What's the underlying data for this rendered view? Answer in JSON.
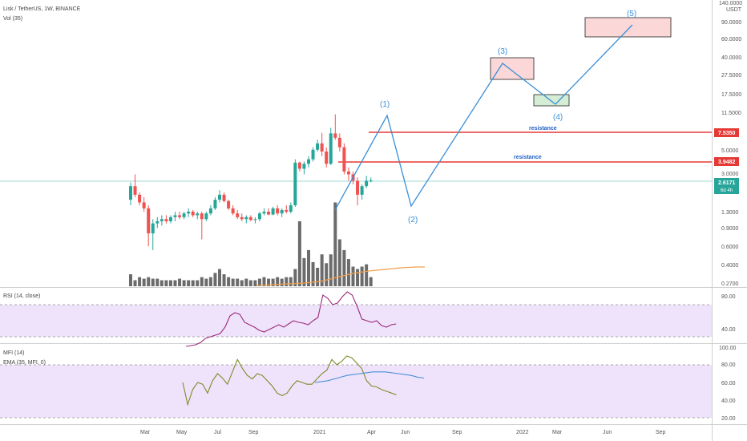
{
  "header": {
    "symbol": "Lisk / TetherUS, 1W, BINANCE",
    "volume": "Vol (35)",
    "rsi": "RSI (14, close)",
    "mfi": "MFI (14)",
    "ema": "EMA (35, MFI, 0)"
  },
  "price_axis": {
    "unit": "USDT",
    "ticks": [
      "140.0000",
      "90.0000",
      "60.0000",
      "40.0000",
      "27.5000",
      "17.5000",
      "11.5000",
      "7.5350",
      "5.0000",
      "3.9482",
      "3.0000",
      "2.6171",
      "1.3000",
      "0.9000",
      "0.6000",
      "0.4000",
      "0.2700"
    ],
    "badges": [
      {
        "value": "7.5350",
        "color": "#e53935"
      },
      {
        "value": "3.9482",
        "color": "#e53935"
      },
      {
        "value": "2.6171",
        "sub": "6d 4h",
        "color": "#26a69a"
      }
    ]
  },
  "rsi_axis": {
    "ticks": [
      "80.00",
      "40.00"
    ]
  },
  "mfi_axis": {
    "ticks": [
      "100.00",
      "80.00",
      "60.00",
      "40.00",
      "20.00"
    ]
  },
  "date_axis": {
    "ticks": [
      "Mar",
      "May",
      "Jul",
      "Sep",
      "2021",
      "Apr",
      "Jun",
      "Sep",
      "2022",
      "Mar",
      "Jun",
      "Sep"
    ]
  },
  "annotations": {
    "waves": [
      "(1)",
      "(2)",
      "(3)",
      "(4)",
      "(5)"
    ],
    "resistance": [
      "resistance",
      "resistance"
    ],
    "wave_color": "#3a8fd8",
    "resistance_line_color": "#e53935"
  },
  "chart_data": {
    "type": "candlestick",
    "title": "Lisk / TetherUS, 1W, BINANCE",
    "y_scale": "log",
    "ylim": [
      0.27,
      140
    ],
    "colors": {
      "up": "#26a69a",
      "down": "#ef5350",
      "volume": "#6b6b6b"
    },
    "candles_approx": [
      [
        1.7,
        2.5,
        1.5,
        2.3
      ],
      [
        2.3,
        3.0,
        1.8,
        1.9
      ],
      [
        1.9,
        2.0,
        1.5,
        1.6
      ],
      [
        1.6,
        1.8,
        1.3,
        1.4
      ],
      [
        1.4,
        1.5,
        0.6,
        0.8
      ],
      [
        0.8,
        1.1,
        0.55,
        1.0
      ],
      [
        1.0,
        1.15,
        0.9,
        1.05
      ],
      [
        1.05,
        1.2,
        0.95,
        1.1
      ],
      [
        1.1,
        1.2,
        1.0,
        1.05
      ],
      [
        1.05,
        1.2,
        1.0,
        1.15
      ],
      [
        1.15,
        1.3,
        1.05,
        1.2
      ],
      [
        1.2,
        1.3,
        1.1,
        1.15
      ],
      [
        1.15,
        1.3,
        1.1,
        1.25
      ],
      [
        1.25,
        1.4,
        1.15,
        1.3
      ],
      [
        1.3,
        1.35,
        1.15,
        1.2
      ],
      [
        1.2,
        1.3,
        1.1,
        1.25
      ],
      [
        1.25,
        1.3,
        0.7,
        1.1
      ],
      [
        1.1,
        1.3,
        1.05,
        1.25
      ],
      [
        1.25,
        1.5,
        1.2,
        1.4
      ],
      [
        1.4,
        1.8,
        1.35,
        1.7
      ],
      [
        1.7,
        2.1,
        1.6,
        1.9
      ],
      [
        1.9,
        2.0,
        1.6,
        1.65
      ],
      [
        1.65,
        1.7,
        1.35,
        1.4
      ],
      [
        1.4,
        1.5,
        1.2,
        1.25
      ],
      [
        1.25,
        1.35,
        1.1,
        1.15
      ],
      [
        1.15,
        1.25,
        1.05,
        1.1
      ],
      [
        1.1,
        1.2,
        1.0,
        1.15
      ],
      [
        1.15,
        1.2,
        1.05,
        1.08
      ],
      [
        1.08,
        1.15,
        1.0,
        1.1
      ],
      [
        1.1,
        1.3,
        1.05,
        1.25
      ],
      [
        1.25,
        1.4,
        1.2,
        1.3
      ],
      [
        1.3,
        1.4,
        1.2,
        1.22
      ],
      [
        1.22,
        1.45,
        1.2,
        1.4
      ],
      [
        1.4,
        1.5,
        1.2,
        1.25
      ],
      [
        1.25,
        1.4,
        1.15,
        1.35
      ],
      [
        1.35,
        1.5,
        1.25,
        1.3
      ],
      [
        1.3,
        1.6,
        1.25,
        1.5
      ],
      [
        1.5,
        4.2,
        1.45,
        3.9
      ],
      [
        3.9,
        4.0,
        3.2,
        3.4
      ],
      [
        3.4,
        4.0,
        3.0,
        3.8
      ],
      [
        3.8,
        4.5,
        3.5,
        4.2
      ],
      [
        4.2,
        5.5,
        4.0,
        5.2
      ],
      [
        5.2,
        6.5,
        5.0,
        6.0
      ],
      [
        6.0,
        7.6,
        4.5,
        5.0
      ],
      [
        5.0,
        5.5,
        3.5,
        3.8
      ],
      [
        3.8,
        8.5,
        3.7,
        7.5
      ],
      [
        7.5,
        11.5,
        6.5,
        6.8
      ],
      [
        6.8,
        7.5,
        5.0,
        5.5
      ],
      [
        5.5,
        6.0,
        3.0,
        3.2
      ],
      [
        3.2,
        3.5,
        2.6,
        3.0
      ],
      [
        3.0,
        3.2,
        2.4,
        2.6
      ],
      [
        2.6,
        2.8,
        1.5,
        1.9
      ],
      [
        1.9,
        2.4,
        1.7,
        2.3
      ],
      [
        2.3,
        2.9,
        2.2,
        2.6
      ],
      [
        2.6,
        2.8,
        2.5,
        2.62
      ]
    ],
    "volume_approx": [
      0.32,
      0.28,
      0.3,
      0.29,
      0.3,
      0.29,
      0.29,
      0.28,
      0.28,
      0.28,
      0.28,
      0.29,
      0.28,
      0.28,
      0.28,
      0.28,
      0.3,
      0.29,
      0.3,
      0.33,
      0.36,
      0.32,
      0.3,
      0.29,
      0.29,
      0.28,
      0.29,
      0.28,
      0.28,
      0.29,
      0.3,
      0.29,
      0.29,
      0.3,
      0.29,
      0.3,
      0.3,
      0.36,
      1.05,
      0.46,
      0.55,
      0.42,
      0.37,
      0.5,
      0.41,
      0.5,
      1.6,
      0.7,
      0.55,
      0.45,
      0.38,
      0.36,
      0.38,
      0.4,
      0.3
    ],
    "rsi_approx": [
      28,
      29,
      30,
      33,
      38,
      40,
      42,
      44,
      52,
      66,
      70,
      68,
      58,
      55,
      52,
      48,
      46,
      49,
      52,
      55,
      52,
      56,
      60,
      58,
      57,
      55,
      60,
      64,
      92,
      88,
      80,
      82,
      90,
      96,
      92,
      78,
      62,
      60,
      58,
      60,
      54,
      52,
      55,
      56
    ],
    "mfi_approx": [
      60,
      35,
      52,
      60,
      58,
      48,
      62,
      70,
      65,
      58,
      72,
      86,
      76,
      68,
      64,
      70,
      68,
      62,
      56,
      48,
      45,
      48,
      56,
      62,
      60,
      58,
      58,
      64,
      70,
      74,
      86,
      80,
      84,
      90,
      88,
      82,
      76,
      62,
      56,
      55,
      52,
      50,
      48,
      46
    ],
    "ema_approx": [
      60,
      61,
      62,
      64,
      66,
      68,
      69,
      70,
      71,
      72,
      72,
      72,
      71,
      70,
      69,
      68,
      66,
      65
    ],
    "rsi_band": [
      40,
      80
    ],
    "mfi_band": [
      20,
      80
    ],
    "resistance_levels": [
      7.535,
      3.9482
    ],
    "last_price": 2.6171,
    "wave_boxes": [
      {
        "label": "(3)",
        "ylim": [
          21,
          40
        ]
      },
      {
        "label": "(4)",
        "ylim": [
          13.5,
          16.5
        ]
      },
      {
        "label": "(5)",
        "ylim": [
          62,
          95
        ]
      }
    ]
  }
}
